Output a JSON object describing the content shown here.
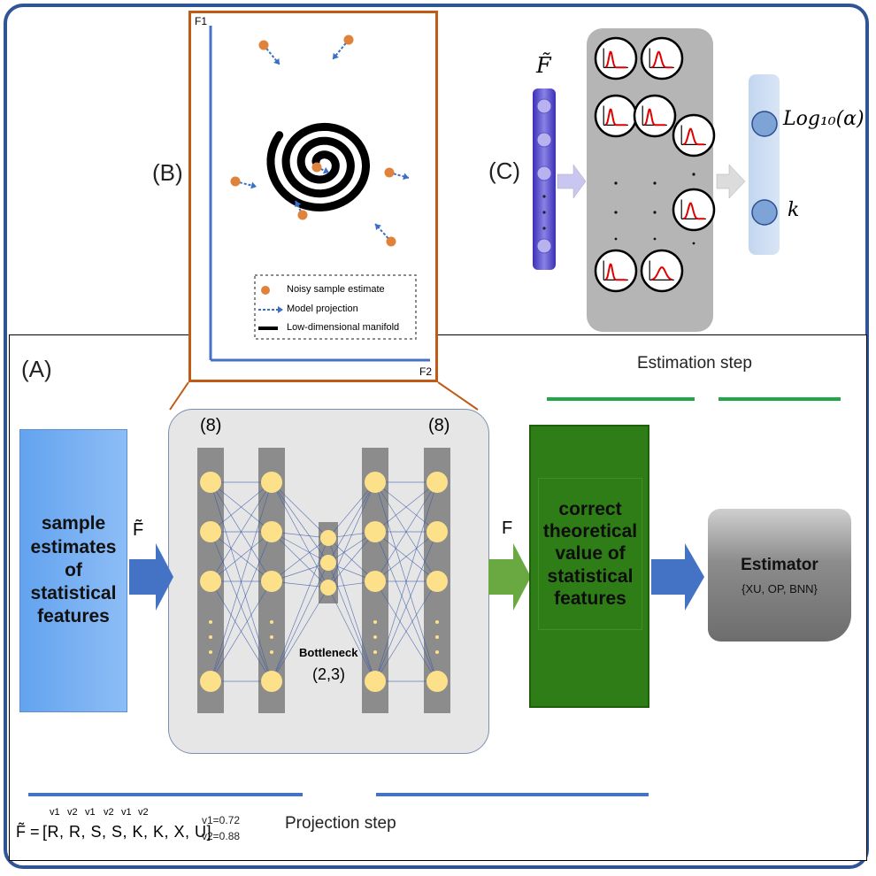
{
  "panel_a": {
    "label": "(A)",
    "sample_box": "sample estimates of statistical features",
    "f_tilde": "F̃",
    "f_plain": "F",
    "left_layer_count": "(8)",
    "right_layer_count": "(8)",
    "bottleneck_label": "Bottleneck",
    "bottleneck_count": "(2,3)",
    "correct_box": "correct theoretical value of statistical features",
    "estimator_title": "Estimator",
    "estimator_options": "{XU, OP, BNN}",
    "estimation_step": "Estimation step",
    "projection_step": "Projection step",
    "formula_lhs": "F̃ =",
    "formula_body": "[R, R, S, S, K, K, X, U]",
    "formula_superscripts": [
      "v1",
      "v2",
      "v1",
      "v2",
      "v1",
      "v2"
    ],
    "v1": "v1=0.72",
    "v2": "v2=0.88"
  },
  "panel_b": {
    "label": "(B)",
    "axis_y": "F1",
    "axis_x": "F2",
    "legend": {
      "noisy": "Noisy sample estimate",
      "projection": "Model projection",
      "manifold": "Low-dimensional manifold"
    },
    "colors": {
      "point": "#e0823a",
      "arrow": "#3b6fc4",
      "manifold": "#000000",
      "frame": "#c05a14"
    }
  },
  "panel_c": {
    "label": "(C)",
    "input_label": "F̃",
    "output_top": "Log₁₀(α)",
    "output_bottom": "k"
  },
  "colors": {
    "outer_border": "#2f5597",
    "sample_box": "#6fa8f0",
    "correct_box": "#2e7d17",
    "node": "#fde18a",
    "green_line": "#22a64a",
    "blue_line": "#4472c4"
  }
}
